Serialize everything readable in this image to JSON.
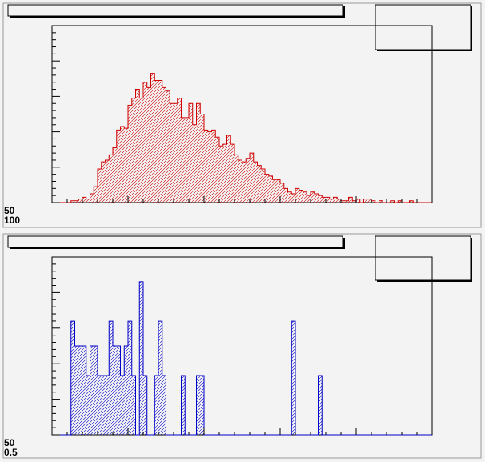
{
  "page": {
    "background": "#f3f3f3",
    "frame_color": "#9a9a9a"
  },
  "pads": [
    {
      "id": "top",
      "title_text": "",
      "stats_text": "",
      "axis_tick_labels_y": [
        "50",
        "100"
      ],
      "colors": {
        "line": "#d00000",
        "hatch": "#d00000"
      }
    },
    {
      "id": "bottom",
      "title_text": "",
      "stats_text": "",
      "axis_tick_labels_y": [
        "50",
        "0.5"
      ],
      "colors": {
        "line": "#0000c8",
        "hatch": "#0000c8"
      }
    }
  ],
  "chart_data": [
    {
      "type": "bar",
      "title": "",
      "xlabel": "",
      "ylabel": "",
      "xlim": [
        0,
        100
      ],
      "ylim": [
        0,
        100
      ],
      "grid": false,
      "legend": "none",
      "series": [
        {
          "values": [
            0,
            0,
            0,
            0,
            0,
            1,
            1,
            2,
            3,
            2,
            5,
            9,
            19,
            23,
            24,
            27,
            31,
            41,
            43,
            42,
            55,
            59,
            64,
            59,
            68,
            65,
            73,
            69,
            69,
            65,
            63,
            56,
            56,
            59,
            48,
            48,
            56,
            44,
            56,
            50,
            41,
            40,
            41,
            37,
            32,
            33,
            38,
            33,
            27,
            24,
            23,
            25,
            28,
            23,
            21,
            19,
            16,
            15,
            13,
            13,
            11,
            8,
            6,
            5,
            8,
            7,
            6,
            4,
            6,
            5,
            4,
            3,
            3,
            2,
            3,
            2,
            1,
            1,
            3,
            1,
            2,
            0,
            2,
            2,
            1,
            0,
            1,
            0,
            0,
            1,
            0,
            1,
            0,
            0,
            1,
            0,
            0,
            0,
            0,
            0
          ]
        }
      ]
    },
    {
      "type": "bar",
      "title": "",
      "xlabel": "",
      "ylabel": "",
      "xlim": [
        0,
        100
      ],
      "ylim": [
        0,
        1.8
      ],
      "grid": false,
      "legend": "none",
      "series": [
        {
          "values": [
            0,
            0,
            0,
            0,
            0,
            1.15,
            0.9,
            0.9,
            0.9,
            0.6,
            0.9,
            0.9,
            0.6,
            0.6,
            0.6,
            1.15,
            0.9,
            0.9,
            0.6,
            0.9,
            1.15,
            0.6,
            0,
            1.55,
            0.6,
            0,
            0,
            0.6,
            1.15,
            0.6,
            0,
            0,
            0,
            0,
            0.6,
            0,
            0,
            0,
            0.6,
            0.6,
            0,
            0,
            0,
            0,
            0,
            0,
            0,
            0,
            0,
            0,
            0,
            0,
            0,
            0,
            0,
            0,
            0,
            0,
            0,
            0,
            0,
            0,
            0,
            1.15,
            0,
            0,
            0,
            0,
            0,
            0,
            0.6,
            0,
            0,
            0,
            0,
            0,
            0,
            0,
            0,
            0,
            0,
            0,
            0,
            0,
            0,
            0,
            0,
            0,
            0,
            0,
            0,
            0,
            0,
            0,
            0,
            0,
            0,
            0,
            0,
            0
          ]
        }
      ]
    }
  ]
}
